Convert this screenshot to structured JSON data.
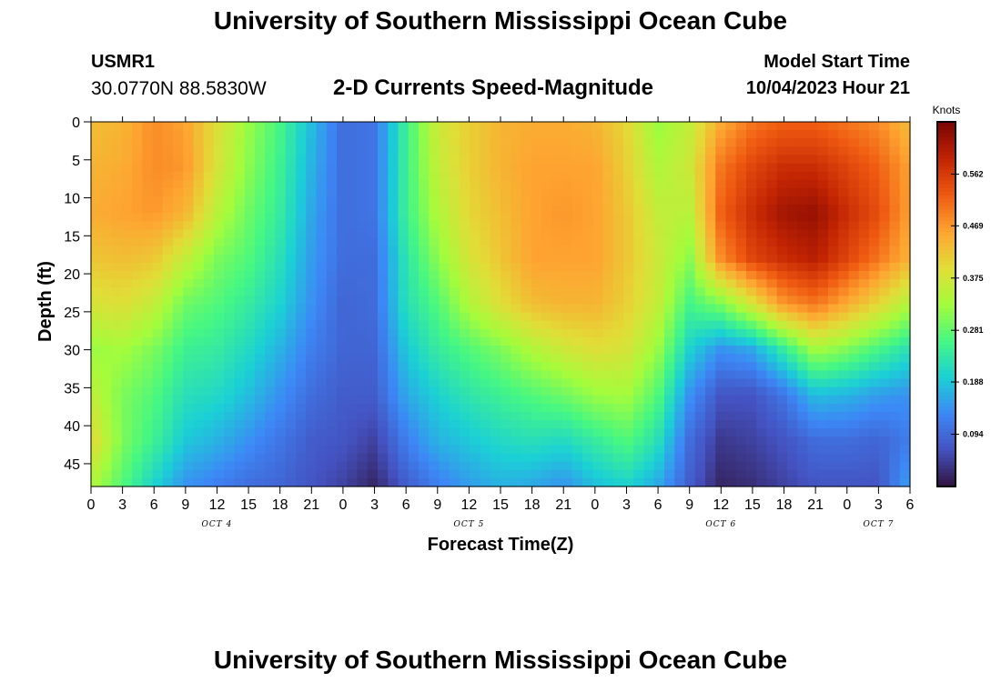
{
  "header": {
    "title": "University of Southern Mississippi Ocean Cube",
    "station_id": "USMR1",
    "coordinates": "30.0770N  88.5830W",
    "plot_title": "2-D Currents Speed-Magnitude",
    "model_start_label": "Model Start Time",
    "model_start_value": "10/04/2023 Hour 21"
  },
  "footer": {
    "title": "University of Southern Mississippi Ocean Cube"
  },
  "chart_data": {
    "type": "heatmap",
    "title": "2-D Currents Speed-Magnitude",
    "xlabel": "Forecast Time(Z)",
    "ylabel": "Depth (ft)",
    "x_range_hours": [
      0,
      78
    ],
    "x_ticks": [
      {
        "hour": 0,
        "label": "0"
      },
      {
        "hour": 3,
        "label": "3"
      },
      {
        "hour": 6,
        "label": "6"
      },
      {
        "hour": 9,
        "label": "9"
      },
      {
        "hour": 12,
        "label": "12"
      },
      {
        "hour": 15,
        "label": "15"
      },
      {
        "hour": 18,
        "label": "18"
      },
      {
        "hour": 21,
        "label": "21"
      },
      {
        "hour": 24,
        "label": "0"
      },
      {
        "hour": 27,
        "label": "3"
      },
      {
        "hour": 30,
        "label": "6"
      },
      {
        "hour": 33,
        "label": "9"
      },
      {
        "hour": 36,
        "label": "12"
      },
      {
        "hour": 39,
        "label": "15"
      },
      {
        "hour": 42,
        "label": "18"
      },
      {
        "hour": 45,
        "label": "21"
      },
      {
        "hour": 48,
        "label": "0"
      },
      {
        "hour": 51,
        "label": "3"
      },
      {
        "hour": 54,
        "label": "6"
      },
      {
        "hour": 57,
        "label": "9"
      },
      {
        "hour": 60,
        "label": "12"
      },
      {
        "hour": 63,
        "label": "15"
      },
      {
        "hour": 66,
        "label": "18"
      },
      {
        "hour": 69,
        "label": "21"
      },
      {
        "hour": 72,
        "label": "0"
      },
      {
        "hour": 75,
        "label": "3"
      },
      {
        "hour": 78,
        "label": "6"
      }
    ],
    "day_labels": [
      {
        "hour": 12,
        "label": "OCT 4"
      },
      {
        "hour": 36,
        "label": "OCT 5"
      },
      {
        "hour": 60,
        "label": "OCT 6"
      },
      {
        "hour": 75,
        "label": "OCT 7"
      }
    ],
    "depth_range_ft": [
      0,
      48
    ],
    "y_ticks": [
      0,
      5,
      10,
      15,
      20,
      25,
      30,
      35,
      40,
      45
    ],
    "colorbar": {
      "title": "Knots",
      "min": 0.0,
      "max": 0.656,
      "ticks": [
        0.094,
        0.188,
        0.281,
        0.375,
        0.469,
        0.562
      ]
    },
    "time_hours": [
      0,
      3,
      6,
      9,
      12,
      15,
      18,
      21,
      24,
      27,
      30,
      33,
      36,
      39,
      42,
      45,
      48,
      51,
      54,
      57,
      60,
      63,
      66,
      69,
      72,
      75,
      78
    ],
    "depths_ft": [
      0,
      6,
      12,
      18,
      24,
      30,
      36,
      42,
      48
    ],
    "speed_knots": [
      [
        0.43,
        0.44,
        0.45,
        0.42,
        0.38,
        0.32,
        0.36,
        0.4,
        0.34
      ],
      [
        0.44,
        0.45,
        0.46,
        0.43,
        0.39,
        0.33,
        0.3,
        0.3,
        0.27
      ],
      [
        0.48,
        0.48,
        0.47,
        0.42,
        0.36,
        0.3,
        0.27,
        0.25,
        0.2
      ],
      [
        0.46,
        0.47,
        0.44,
        0.36,
        0.29,
        0.25,
        0.22,
        0.19,
        0.14
      ],
      [
        0.39,
        0.38,
        0.35,
        0.3,
        0.27,
        0.24,
        0.21,
        0.17,
        0.12
      ],
      [
        0.32,
        0.31,
        0.29,
        0.27,
        0.24,
        0.21,
        0.18,
        0.14,
        0.1
      ],
      [
        0.26,
        0.25,
        0.24,
        0.22,
        0.2,
        0.17,
        0.14,
        0.11,
        0.09
      ],
      [
        0.18,
        0.17,
        0.16,
        0.15,
        0.14,
        0.12,
        0.1,
        0.08,
        0.07
      ],
      [
        0.1,
        0.1,
        0.1,
        0.1,
        0.09,
        0.09,
        0.08,
        0.07,
        0.05
      ],
      [
        0.11,
        0.11,
        0.11,
        0.1,
        0.1,
        0.09,
        0.08,
        0.05,
        0.02
      ],
      [
        0.25,
        0.25,
        0.25,
        0.23,
        0.22,
        0.19,
        0.16,
        0.12,
        0.08
      ],
      [
        0.37,
        0.36,
        0.34,
        0.31,
        0.27,
        0.24,
        0.2,
        0.17,
        0.12
      ],
      [
        0.41,
        0.41,
        0.4,
        0.38,
        0.34,
        0.27,
        0.23,
        0.19,
        0.15
      ],
      [
        0.44,
        0.44,
        0.43,
        0.42,
        0.39,
        0.3,
        0.25,
        0.21,
        0.17
      ],
      [
        0.45,
        0.46,
        0.46,
        0.46,
        0.43,
        0.34,
        0.27,
        0.22,
        0.16
      ],
      [
        0.45,
        0.46,
        0.47,
        0.46,
        0.44,
        0.37,
        0.29,
        0.21,
        0.14
      ],
      [
        0.44,
        0.46,
        0.46,
        0.46,
        0.44,
        0.39,
        0.32,
        0.24,
        0.18
      ],
      [
        0.4,
        0.41,
        0.42,
        0.42,
        0.41,
        0.38,
        0.33,
        0.27,
        0.2
      ],
      [
        0.32,
        0.34,
        0.36,
        0.37,
        0.36,
        0.32,
        0.27,
        0.22,
        0.16
      ],
      [
        0.36,
        0.37,
        0.35,
        0.31,
        0.26,
        0.2,
        0.14,
        0.1,
        0.08
      ],
      [
        0.45,
        0.5,
        0.52,
        0.48,
        0.3,
        0.14,
        0.07,
        0.04,
        0.02
      ],
      [
        0.5,
        0.55,
        0.58,
        0.55,
        0.38,
        0.16,
        0.07,
        0.05,
        0.03
      ],
      [
        0.52,
        0.58,
        0.62,
        0.58,
        0.47,
        0.24,
        0.11,
        0.07,
        0.05
      ],
      [
        0.52,
        0.58,
        0.63,
        0.6,
        0.5,
        0.33,
        0.18,
        0.1,
        0.07
      ],
      [
        0.5,
        0.55,
        0.58,
        0.55,
        0.45,
        0.3,
        0.17,
        0.1,
        0.07
      ],
      [
        0.48,
        0.52,
        0.54,
        0.5,
        0.4,
        0.26,
        0.15,
        0.09,
        0.07
      ],
      [
        0.43,
        0.46,
        0.46,
        0.44,
        0.34,
        0.22,
        0.14,
        0.12,
        0.16
      ]
    ]
  }
}
